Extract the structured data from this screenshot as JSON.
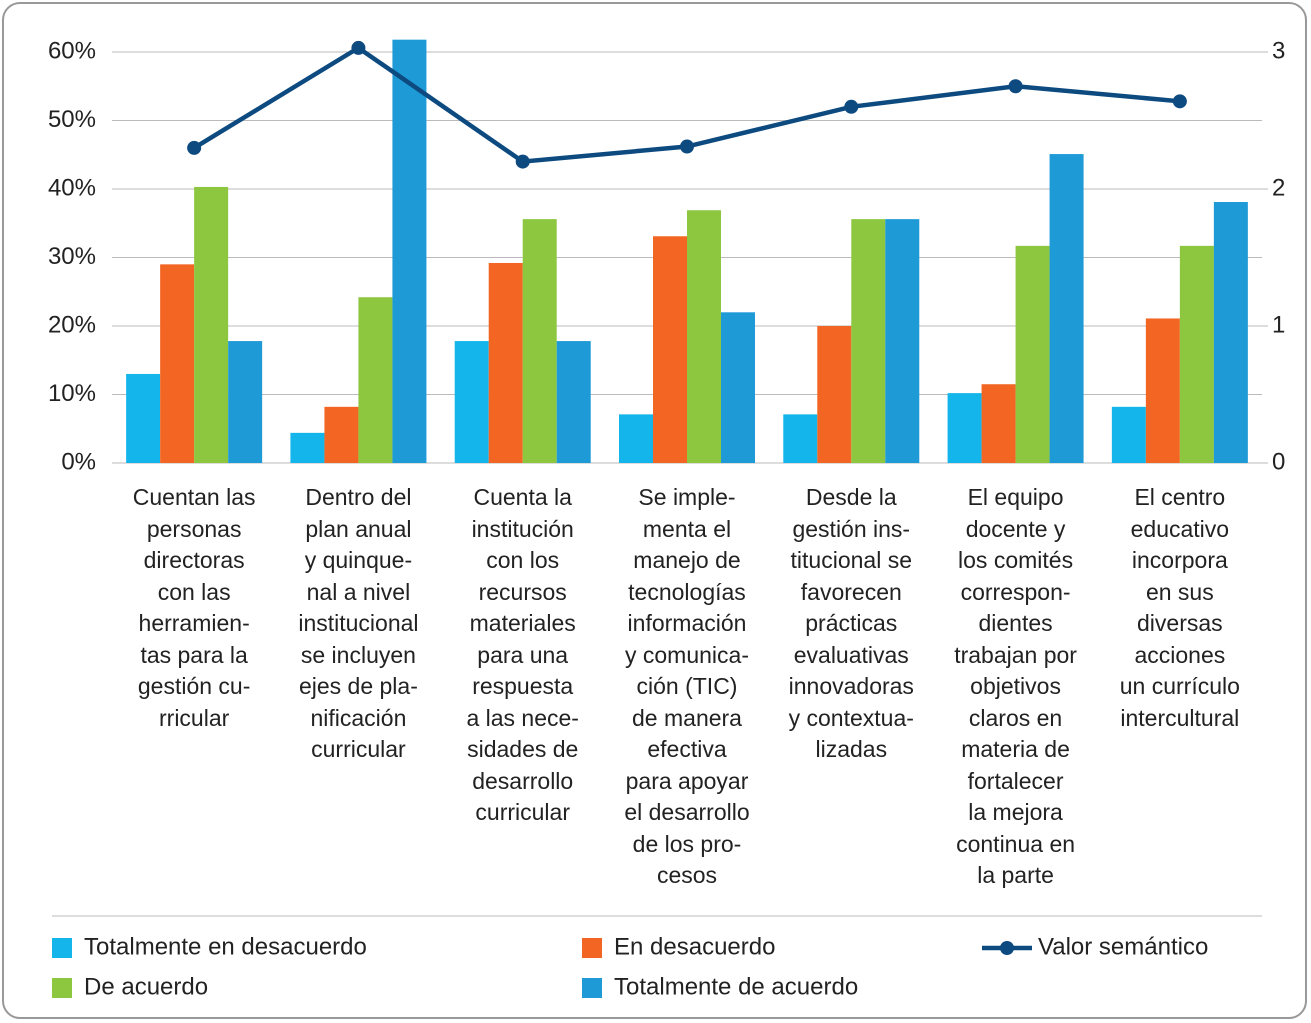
{
  "chart_data": {
    "type": "bar",
    "categories": [
      "Cuentan las\npersonas\ndirectoras\ncon las\nherramien-\ntas para la\ngestión cu-\nrricular",
      "Dentro del\nplan anual\ny quinque-\nnal a nivel\ninstitucional\nse incluyen\nejes de pla-\nnificación\ncurricular",
      "Cuenta la\ninstitución\ncon los\nrecursos\nmateriales\npara una\nrespuesta\na las nece-\nsidades de\ndesarrollo\ncurricular",
      "Se imple-\nmenta el\nmanejo de\ntecnologías\ninformación\ny comunica-\nción (TIC)\nde manera\nefectiva\npara apoyar\nel desarrollo\nde los pro-\ncesos",
      "Desde la\ngestión ins-\ntitucional se\nfavorecen\nprácticas\nevaluativas\ninnovadoras\ny contextua-\nlizadas",
      "El equipo\ndocente y\nlos comités\ncorrespon-\ndientes\ntrabajan por\nobjetivos\nclaros en\nmateria de\nfortalecer\nla mejora\ncontinua en\nla parte",
      "El centro\neducativo\nincorpora\nen sus\ndiversas\nacciones\nun currículo\nintercultural"
    ],
    "series": [
      {
        "name": "Totalmente en desacuerdo",
        "color": "#13b5ea",
        "values": [
          13,
          4.4,
          17.8,
          7.1,
          7.1,
          10.2,
          8.2
        ]
      },
      {
        "name": "En desacuerdo",
        "color": "#f26522",
        "values": [
          29,
          8.2,
          29.2,
          33.1,
          20,
          11.5,
          21.1
        ]
      },
      {
        "name": "De acuerdo",
        "color": "#8dc63f",
        "values": [
          40.3,
          24.2,
          35.6,
          36.9,
          35.6,
          31.7,
          31.7
        ]
      },
      {
        "name": "Totalmente de acuerdo",
        "color": "#1e9ad6",
        "values": [
          17.8,
          61.8,
          17.8,
          22,
          35.6,
          45.1,
          38.1
        ]
      },
      {
        "name": "Valor semántico",
        "color": "#0d4a80",
        "type": "line",
        "axis": "y2",
        "values": [
          2.3,
          3.03,
          2.2,
          2.31,
          2.6,
          2.75,
          2.64
        ]
      }
    ],
    "ylim": [
      0,
      60
    ],
    "yticks": [
      {
        "value": 0,
        "label": "0%"
      },
      {
        "value": 10,
        "label": "10%"
      },
      {
        "value": 20,
        "label": "20%"
      },
      {
        "value": 30,
        "label": "30%"
      },
      {
        "value": 40,
        "label": "40%"
      },
      {
        "value": 50,
        "label": "50%"
      },
      {
        "value": 60,
        "label": "60%"
      }
    ],
    "y2lim": [
      0,
      3
    ],
    "y2ticks": [
      0,
      1,
      2,
      3
    ],
    "grid": true
  }
}
